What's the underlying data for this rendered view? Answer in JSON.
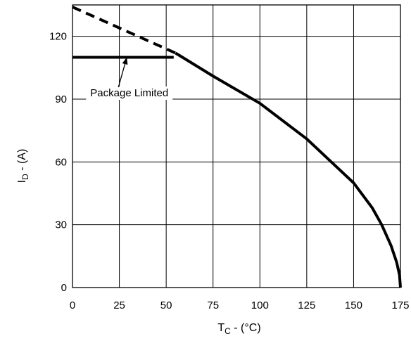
{
  "chart_data": {
    "type": "line",
    "xlabel_main": "T",
    "xlabel_sub": "C",
    "xlabel_rest": " - (°C)",
    "ylabel_main": "I",
    "ylabel_sub": "D",
    "ylabel_rest": " - (A)",
    "xlim": [
      0,
      175
    ],
    "ylim": [
      0,
      135
    ],
    "x_ticks": [
      0,
      25,
      50,
      75,
      100,
      125,
      150,
      175
    ],
    "y_ticks": [
      0,
      30,
      60,
      90,
      120
    ],
    "grid": true,
    "series": [
      {
        "style": "dashed",
        "x": [
          0,
          25,
          50,
          55
        ],
        "y": [
          134,
          124,
          114,
          112
        ]
      },
      {
        "style": "solid",
        "x": [
          0,
          54
        ],
        "y": [
          110,
          110
        ]
      },
      {
        "style": "solid",
        "x": [
          55,
          75,
          100,
          125,
          150,
          160,
          165,
          170,
          173,
          174.5,
          175
        ],
        "y": [
          112,
          101,
          88,
          71,
          50,
          38,
          30,
          20,
          12,
          6,
          0
        ]
      }
    ],
    "annotations": [
      {
        "text": "Package Limited",
        "x": 8,
        "y": 91,
        "arrow_to": [
          29,
          110
        ]
      }
    ]
  }
}
